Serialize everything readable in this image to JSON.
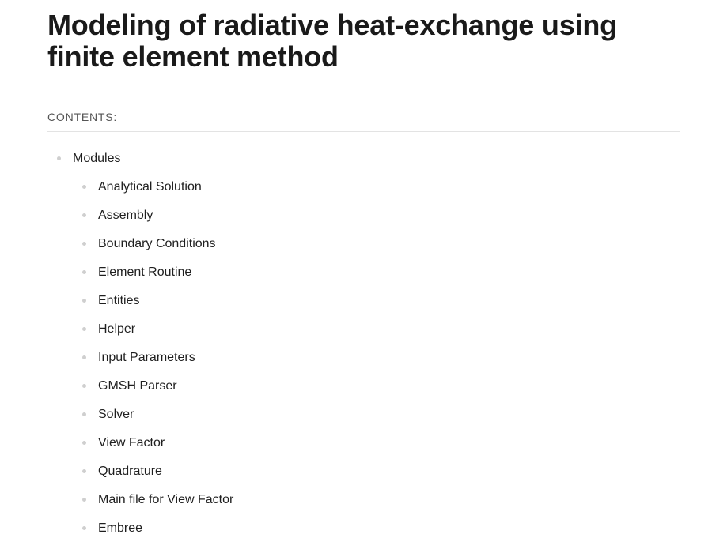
{
  "title": "Modeling of radiative heat-exchange using finite element method",
  "contents": {
    "caption": "CONTENTS:",
    "items": [
      {
        "label": "Modules",
        "children": [
          {
            "label": "Analytical Solution"
          },
          {
            "label": "Assembly"
          },
          {
            "label": "Boundary Conditions"
          },
          {
            "label": "Element Routine"
          },
          {
            "label": "Entities"
          },
          {
            "label": "Helper"
          },
          {
            "label": "Input Parameters"
          },
          {
            "label": "GMSH Parser"
          },
          {
            "label": "Solver"
          },
          {
            "label": "View Factor"
          },
          {
            "label": "Quadrature"
          },
          {
            "label": "Main file for View Factor"
          },
          {
            "label": "Embree"
          }
        ]
      }
    ]
  }
}
